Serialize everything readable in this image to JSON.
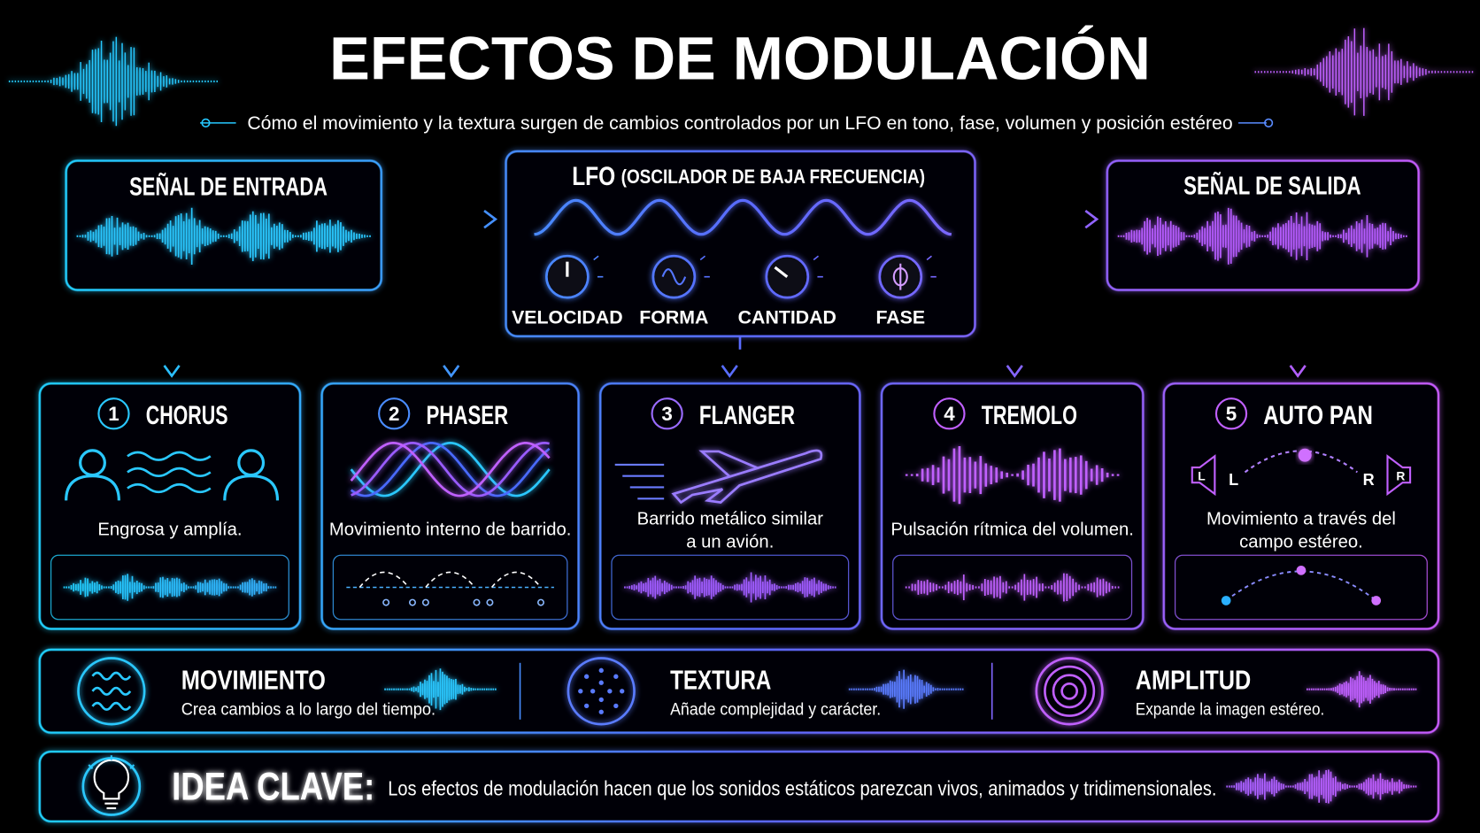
{
  "title": "EFECTOS DE MODULACIÓN",
  "subtitle": "Cómo el movimiento y la textura surgen de cambios controlados por un LFO en tono, fase, volumen y posición estéreo",
  "input": {
    "title": "SEÑAL DE ENTRADA"
  },
  "lfo": {
    "title": "LFO",
    "subtitle": "(OSCILADOR DE BAJA FRECUENCIA)",
    "controls": [
      "VELOCIDAD",
      "FORMA",
      "CANTIDAD",
      "FASE"
    ]
  },
  "output": {
    "title": "SEÑAL DE SALIDA"
  },
  "effects": [
    {
      "number": 1,
      "name": "CHORUS",
      "description": [
        "Engrosa y amplía."
      ]
    },
    {
      "number": 2,
      "name": "PHASER",
      "description": [
        "Movimiento interno de barrido."
      ]
    },
    {
      "number": 3,
      "name": "FLANGER",
      "description": [
        "Barrido metálico similar",
        "a un avión."
      ]
    },
    {
      "number": 4,
      "name": "TREMOLO",
      "description": [
        "Pulsación rítmica del volumen."
      ]
    },
    {
      "number": 5,
      "name": "AUTO PAN",
      "description": [
        "Movimiento a través del",
        "campo estéreo."
      ],
      "channels": [
        "L",
        "R"
      ]
    }
  ],
  "summary": [
    {
      "title": "MOVIMIENTO",
      "description": "Crea cambios a lo largo del tiempo."
    },
    {
      "title": "TEXTURA",
      "description": "Añade complejidad y carácter."
    },
    {
      "title": "AMPLITUD",
      "description": "Expande la imagen estéreo."
    }
  ],
  "key_idea": {
    "label": "IDEA CLAVE:",
    "text": "Los efectos de modulación hacen que los sonidos estáticos parezcan vivos, animados y tridimensionales."
  }
}
